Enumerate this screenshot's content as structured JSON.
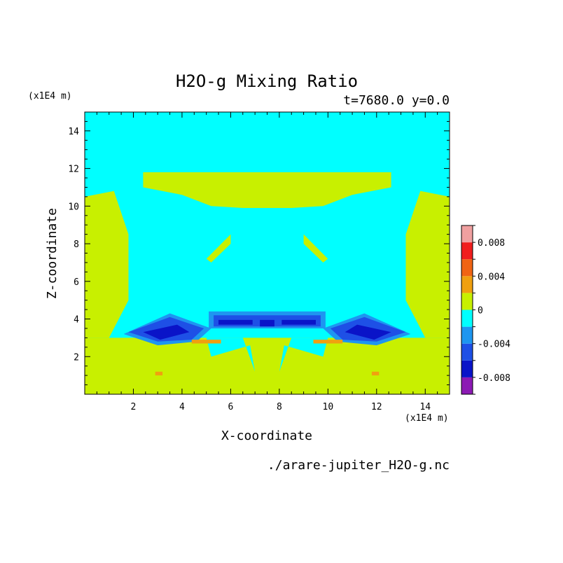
{
  "chart_data": {
    "type": "heatmap",
    "title": "H2O-g Mixing Ratio",
    "subtitle": "t=7680.0 y=0.0",
    "xlabel": "X-coordinate",
    "ylabel": "Z-coordinate",
    "x_unit": "(x1E4 m)",
    "y_unit": "(x1E4 m)",
    "source_file": "./arare-jupiter_H2O-g.nc",
    "xlim": [
      0,
      15
    ],
    "ylim": [
      0,
      15
    ],
    "x_ticks": [
      2,
      4,
      6,
      8,
      10,
      12,
      14
    ],
    "y_ticks": [
      2,
      4,
      6,
      8,
      10,
      12,
      14
    ],
    "x_tick_labels": [
      "2",
      "4",
      "6",
      "8",
      "10",
      "12",
      "14"
    ],
    "y_tick_labels": [
      "2",
      "4",
      "6",
      "8",
      "10",
      "12",
      "14"
    ],
    "colorbar": {
      "levels": [
        -0.01,
        -0.008,
        -0.006,
        -0.004,
        -0.002,
        0,
        0.002,
        0.004,
        0.006,
        0.008,
        0.01
      ],
      "colors": [
        "#8c1ab4",
        "#0a14c8",
        "#1e50e6",
        "#1e96f0",
        "#00ffff",
        "#c8f000",
        "#f0a010",
        "#f06414",
        "#f01e1e",
        "#f0a0a0"
      ],
      "tick_labels": [
        {
          "value": 0.008,
          "label": "0.008"
        },
        {
          "value": 0.004,
          "label": "0.004"
        },
        {
          "value": 0,
          "label": "0"
        },
        {
          "value": -0.004,
          "label": "-0.004"
        },
        {
          "value": -0.008,
          "label": "-0.008"
        }
      ]
    },
    "background_level_color": "#00ffff",
    "regions": [
      {
        "name": "lower-moist-layer",
        "fill": "#c8f000",
        "x": [
          0,
          15,
          15,
          0
        ],
        "y": [
          0,
          0,
          3.0,
          3.0
        ]
      },
      {
        "name": "left-moist-column",
        "fill": "#c8f000",
        "x": [
          0,
          1.0,
          1.8,
          1.8,
          1.2,
          0
        ],
        "y": [
          3,
          3,
          5,
          8.5,
          10.8,
          10.5
        ]
      },
      {
        "name": "right-moist-column",
        "fill": "#c8f000",
        "x": [
          15,
          14.0,
          13.2,
          13.2,
          13.8,
          15
        ],
        "y": [
          3,
          3,
          5,
          8.5,
          10.8,
          10.5
        ]
      },
      {
        "name": "upper-moist-band",
        "fill": "#c8f000",
        "x": [
          2.4,
          12.6,
          12.6,
          11.0,
          9.8,
          8.5,
          6.5,
          5.2,
          4.0,
          2.4
        ],
        "y": [
          11.8,
          11.8,
          11.0,
          10.6,
          10.0,
          9.9,
          9.9,
          10.0,
          10.6,
          11.0
        ]
      },
      {
        "name": "left-mid-blob",
        "fill": "#c8f000",
        "x": [
          5.0,
          6.0,
          6.0,
          5.2
        ],
        "y": [
          7.2,
          8.5,
          8.0,
          7.0
        ]
      },
      {
        "name": "right-mid-blob",
        "fill": "#c8f000",
        "x": [
          10.0,
          9.0,
          9.0,
          9.8
        ],
        "y": [
          7.2,
          8.5,
          8.0,
          7.0
        ]
      },
      {
        "name": "left-dry-lens-outer",
        "fill": "#1e96f0",
        "x": [
          1.6,
          3.5,
          5.2,
          4.6,
          3.0
        ],
        "y": [
          3.2,
          4.3,
          3.5,
          2.8,
          2.6
        ]
      },
      {
        "name": "left-dry-lens-mid",
        "fill": "#1e50e6",
        "x": [
          1.8,
          3.5,
          4.9,
          4.4,
          3.0
        ],
        "y": [
          3.3,
          4.1,
          3.5,
          2.9,
          2.8
        ]
      },
      {
        "name": "left-dry-lens-core",
        "fill": "#0a14c8",
        "x": [
          2.4,
          3.8,
          4.3,
          3.1
        ],
        "y": [
          3.3,
          3.7,
          3.3,
          2.9
        ]
      },
      {
        "name": "right-dry-lens-outer",
        "fill": "#1e96f0",
        "x": [
          13.4,
          11.5,
          9.8,
          10.4,
          12.0
        ],
        "y": [
          3.2,
          4.3,
          3.5,
          2.8,
          2.6
        ]
      },
      {
        "name": "right-dry-lens-mid",
        "fill": "#1e50e6",
        "x": [
          13.2,
          11.5,
          10.1,
          10.6,
          12.0
        ],
        "y": [
          3.3,
          4.1,
          3.5,
          2.9,
          2.8
        ]
      },
      {
        "name": "right-dry-lens-core",
        "fill": "#0a14c8",
        "x": [
          12.6,
          11.2,
          10.7,
          11.9
        ],
        "y": [
          3.3,
          3.7,
          3.3,
          2.9
        ]
      },
      {
        "name": "center-dry-strip-outer",
        "fill": "#1e96f0",
        "x": [
          5.1,
          9.9,
          9.9,
          5.1
        ],
        "y": [
          4.4,
          4.4,
          3.5,
          3.5
        ]
      },
      {
        "name": "center-dry-strip-mid",
        "fill": "#1e50e6",
        "x": [
          5.3,
          9.7,
          9.7,
          5.3
        ],
        "y": [
          4.2,
          4.2,
          3.6,
          3.6
        ]
      },
      {
        "name": "center-dry-cell-left",
        "fill": "#0a14c8",
        "x": [
          5.5,
          6.9,
          6.9,
          5.5
        ],
        "y": [
          3.95,
          3.95,
          3.7,
          3.7
        ]
      },
      {
        "name": "center-dry-cell-mid",
        "fill": "#0a14c8",
        "x": [
          7.2,
          7.8,
          7.8,
          7.2
        ],
        "y": [
          3.95,
          3.95,
          3.6,
          3.6
        ]
      },
      {
        "name": "center-dry-cell-right",
        "fill": "#0a14c8",
        "x": [
          8.1,
          9.5,
          9.5,
          8.1
        ],
        "y": [
          3.95,
          3.95,
          3.7,
          3.7
        ]
      },
      {
        "name": "center-lower-dry-left",
        "fill": "#00ffff",
        "x": [
          5.0,
          6.5,
          7.0,
          6.8,
          5.2
        ],
        "y": [
          3.0,
          3.0,
          1.2,
          2.6,
          2.0
        ]
      },
      {
        "name": "center-lower-dry-right",
        "fill": "#00ffff",
        "x": [
          10.0,
          8.5,
          8.0,
          8.2,
          9.8
        ],
        "y": [
          3.0,
          3.0,
          1.2,
          2.6,
          2.0
        ]
      },
      {
        "name": "left-moist-streak",
        "fill": "#f0a010",
        "x": [
          4.4,
          5.6,
          5.6,
          4.4
        ],
        "y": [
          2.9,
          2.9,
          2.7,
          2.7
        ]
      },
      {
        "name": "right-moist-streak",
        "fill": "#f0a010",
        "x": [
          9.4,
          10.6,
          10.6,
          9.4
        ],
        "y": [
          2.9,
          2.9,
          2.7,
          2.7
        ]
      },
      {
        "name": "left-moist-dot",
        "fill": "#f0a010",
        "x": [
          2.9,
          3.2,
          3.2,
          2.9
        ],
        "y": [
          1.2,
          1.2,
          1.0,
          1.0
        ]
      },
      {
        "name": "right-moist-dot",
        "fill": "#f0a010",
        "x": [
          11.8,
          12.1,
          12.1,
          11.8
        ],
        "y": [
          1.2,
          1.2,
          1.0,
          1.0
        ]
      }
    ]
  }
}
